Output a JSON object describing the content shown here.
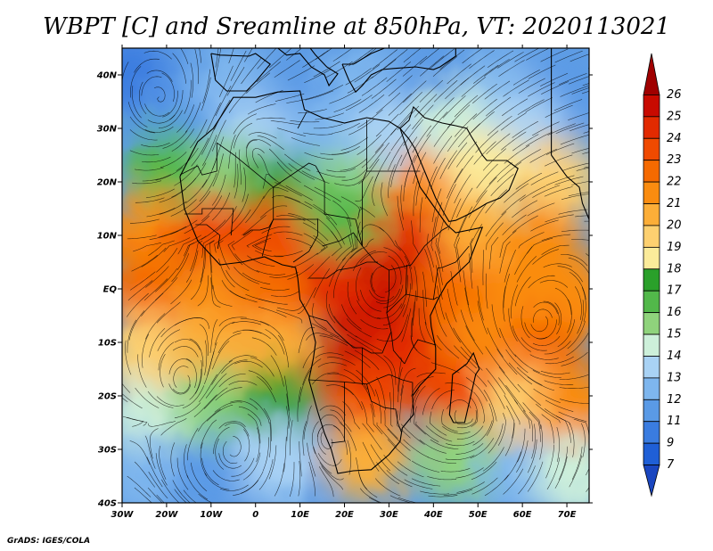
{
  "title": "WBPT [C] and Sreamline at 850hPa, VT: 2020113021",
  "credit": "GrADS: IGES/COLA",
  "map": {
    "lon_range": [
      -30,
      75
    ],
    "lat_range": [
      -40,
      45
    ],
    "x_ticks": [
      {
        "lon": -30,
        "label": "30W"
      },
      {
        "lon": -20,
        "label": "20W"
      },
      {
        "lon": -10,
        "label": "10W"
      },
      {
        "lon": 0,
        "label": "0"
      },
      {
        "lon": 10,
        "label": "10E"
      },
      {
        "lon": 20,
        "label": "20E"
      },
      {
        "lon": 30,
        "label": "30E"
      },
      {
        "lon": 40,
        "label": "40E"
      },
      {
        "lon": 50,
        "label": "50E"
      },
      {
        "lon": 60,
        "label": "60E"
      },
      {
        "lon": 70,
        "label": "70E"
      }
    ],
    "y_ticks": [
      {
        "lat": 40,
        "label": "40N"
      },
      {
        "lat": 30,
        "label": "30N"
      },
      {
        "lat": 20,
        "label": "20N"
      },
      {
        "lat": 10,
        "label": "10N"
      },
      {
        "lat": 0,
        "label": "EQ"
      },
      {
        "lat": -10,
        "label": "10S"
      },
      {
        "lat": -20,
        "label": "20S"
      },
      {
        "lat": -30,
        "label": "30S"
      },
      {
        "lat": -40,
        "label": "40S"
      }
    ]
  },
  "colorbar": {
    "labels": [
      "26",
      "25",
      "24",
      "23",
      "22",
      "21",
      "20",
      "19",
      "18",
      "17",
      "16",
      "15",
      "14",
      "13",
      "12",
      "11",
      "9",
      "7"
    ],
    "colors": [
      "#a00000",
      "#c80a00",
      "#e22a00",
      "#f04a00",
      "#f56a00",
      "#fa8c10",
      "#fcae38",
      "#fdd070",
      "#fbeb9a",
      "#2aa02a",
      "#52b84a",
      "#8fd37c",
      "#cdf0da",
      "#a9d2f4",
      "#7eb6ee",
      "#5a9ae6",
      "#3a7ce0",
      "#1f5fd6",
      "#1a46c0"
    ]
  },
  "field_blobs": [
    {
      "lon": -28,
      "lat": 40,
      "value": 10
    },
    {
      "lon": -15,
      "lat": 35,
      "value": 11
    },
    {
      "lon": -5,
      "lat": 38,
      "value": 12
    },
    {
      "lon": 10,
      "lat": 36,
      "value": 11
    },
    {
      "lon": 25,
      "lat": 38,
      "value": 12
    },
    {
      "lon": 40,
      "lat": 38,
      "value": 11
    },
    {
      "lon": 55,
      "lat": 38,
      "value": 12
    },
    {
      "lon": 68,
      "lat": 36,
      "value": 11
    },
    {
      "lon": 0,
      "lat": 28,
      "value": 13
    },
    {
      "lon": 15,
      "lat": 28,
      "value": 12
    },
    {
      "lon": 30,
      "lat": 28,
      "value": 13
    },
    {
      "lon": 45,
      "lat": 30,
      "value": 14
    },
    {
      "lon": 60,
      "lat": 30,
      "value": 13
    },
    {
      "lon": -20,
      "lat": 22,
      "value": 16
    },
    {
      "lon": -5,
      "lat": 20,
      "value": 15
    },
    {
      "lon": 5,
      "lat": 18,
      "value": 17
    },
    {
      "lon": 20,
      "lat": 18,
      "value": 15
    },
    {
      "lon": 38,
      "lat": 18,
      "value": 21
    },
    {
      "lon": 52,
      "lat": 22,
      "value": 18
    },
    {
      "lon": 68,
      "lat": 20,
      "value": 19
    },
    {
      "lon": -25,
      "lat": 10,
      "value": 21
    },
    {
      "lon": -10,
      "lat": 10,
      "value": 23
    },
    {
      "lon": 5,
      "lat": 9,
      "value": 23
    },
    {
      "lon": 20,
      "lat": 12,
      "value": 16
    },
    {
      "lon": 35,
      "lat": 8,
      "value": 24
    },
    {
      "lon": 50,
      "lat": 10,
      "value": 20
    },
    {
      "lon": 65,
      "lat": 8,
      "value": 21
    },
    {
      "lon": -25,
      "lat": 0,
      "value": 22
    },
    {
      "lon": -10,
      "lat": -2,
      "value": 21
    },
    {
      "lon": 5,
      "lat": -2,
      "value": 22
    },
    {
      "lon": 20,
      "lat": 0,
      "value": 24
    },
    {
      "lon": 32,
      "lat": -2,
      "value": 25
    },
    {
      "lon": 45,
      "lat": -2,
      "value": 22
    },
    {
      "lon": 60,
      "lat": 0,
      "value": 21
    },
    {
      "lon": 72,
      "lat": -2,
      "value": 21
    },
    {
      "lon": -25,
      "lat": -12,
      "value": 19
    },
    {
      "lon": -10,
      "lat": -12,
      "value": 20
    },
    {
      "lon": 5,
      "lat": -12,
      "value": 20
    },
    {
      "lon": 22,
      "lat": -14,
      "value": 25
    },
    {
      "lon": 35,
      "lat": -12,
      "value": 24
    },
    {
      "lon": 50,
      "lat": -12,
      "value": 21
    },
    {
      "lon": 65,
      "lat": -12,
      "value": 22
    },
    {
      "lon": -25,
      "lat": -25,
      "value": 14
    },
    {
      "lon": -10,
      "lat": -22,
      "value": 15
    },
    {
      "lon": 5,
      "lat": -22,
      "value": 17
    },
    {
      "lon": 25,
      "lat": -22,
      "value": 23
    },
    {
      "lon": 45,
      "lat": -20,
      "value": 23
    },
    {
      "lon": 60,
      "lat": -22,
      "value": 19
    },
    {
      "lon": 72,
      "lat": -22,
      "value": 21
    },
    {
      "lon": -25,
      "lat": -35,
      "value": 12
    },
    {
      "lon": -10,
      "lat": -35,
      "value": 11
    },
    {
      "lon": 5,
      "lat": -32,
      "value": 13
    },
    {
      "lon": 25,
      "lat": -32,
      "value": 20
    },
    {
      "lon": 45,
      "lat": -32,
      "value": 15
    },
    {
      "lon": 60,
      "lat": -35,
      "value": 12
    },
    {
      "lon": 72,
      "lat": -35,
      "value": 14
    }
  ],
  "coastlines": [
    [
      [
        -17,
        21
      ],
      [
        -16,
        15
      ],
      [
        -13,
        9
      ],
      [
        -8,
        4.5
      ],
      [
        -3,
        5
      ],
      [
        2,
        6
      ],
      [
        6,
        4.5
      ],
      [
        9,
        4
      ],
      [
        9.5,
        2
      ],
      [
        10,
        -2
      ],
      [
        12,
        -5
      ],
      [
        13.5,
        -10
      ],
      [
        13,
        -13
      ],
      [
        12,
        -17
      ],
      [
        14,
        -23
      ],
      [
        15.5,
        -27
      ],
      [
        17,
        -30
      ],
      [
        18.5,
        -34.5
      ],
      [
        22,
        -34
      ],
      [
        26,
        -33.8
      ],
      [
        30,
        -31
      ],
      [
        32.5,
        -28.5
      ],
      [
        33,
        -26
      ],
      [
        35.5,
        -23.5
      ],
      [
        35.3,
        -20
      ],
      [
        37,
        -18
      ],
      [
        40.5,
        -15
      ],
      [
        40.5,
        -11
      ],
      [
        39.5,
        -7
      ],
      [
        39.3,
        -5
      ],
      [
        41,
        -2
      ],
      [
        43,
        1
      ],
      [
        48,
        5
      ],
      [
        51,
        11.5
      ],
      [
        45,
        10.5
      ],
      [
        43,
        12
      ],
      [
        40,
        15.5
      ],
      [
        37,
        19
      ],
      [
        35,
        24
      ],
      [
        32.5,
        30
      ],
      [
        30,
        31.3
      ],
      [
        25,
        32
      ],
      [
        20,
        31
      ],
      [
        15,
        32
      ],
      [
        11,
        33.5
      ],
      [
        10,
        37
      ],
      [
        5,
        36.8
      ],
      [
        0,
        35.8
      ],
      [
        -5,
        35.8
      ],
      [
        -9.5,
        30
      ],
      [
        -13,
        27.5
      ],
      [
        -17,
        21
      ]
    ],
    [
      [
        44.5,
        -25
      ],
      [
        47,
        -25
      ],
      [
        49.5,
        -16
      ],
      [
        50.3,
        -15
      ],
      [
        49,
        -12
      ],
      [
        47.5,
        -14
      ],
      [
        44.3,
        -16
      ],
      [
        44,
        -20
      ],
      [
        43.6,
        -23.5
      ],
      [
        44.5,
        -25
      ]
    ],
    [
      [
        32.5,
        30
      ],
      [
        34.5,
        28
      ],
      [
        36,
        26
      ],
      [
        38,
        22
      ],
      [
        39,
        20
      ],
      [
        40.5,
        17
      ],
      [
        42.5,
        14
      ],
      [
        43.5,
        12.6
      ],
      [
        45,
        12.8
      ],
      [
        48,
        14
      ],
      [
        52,
        16
      ],
      [
        55,
        17
      ],
      [
        57,
        18.5
      ],
      [
        59,
        22.5
      ],
      [
        56.5,
        24
      ],
      [
        54,
        24
      ],
      [
        52,
        24
      ],
      [
        51,
        25
      ],
      [
        50,
        26.5
      ],
      [
        48.5,
        28.5
      ],
      [
        47.5,
        30
      ],
      [
        45,
        30.5
      ],
      [
        42,
        31
      ],
      [
        38,
        32
      ],
      [
        35.5,
        34
      ],
      [
        34.5,
        31.5
      ],
      [
        32.5,
        30
      ]
    ],
    [
      [
        66.5,
        25
      ],
      [
        70,
        21
      ],
      [
        72.8,
        19
      ],
      [
        73.5,
        16
      ],
      [
        75,
        13
      ],
      [
        75,
        45
      ],
      [
        66.5,
        45
      ],
      [
        66.5,
        25
      ]
    ],
    [
      [
        -10,
        44
      ],
      [
        -9,
        39
      ],
      [
        -6.5,
        37
      ],
      [
        -2,
        37
      ],
      [
        0.3,
        39
      ],
      [
        3.3,
        42
      ],
      [
        0,
        44
      ],
      [
        -1.5,
        43.5
      ],
      [
        -8,
        43.7
      ],
      [
        -10,
        44
      ]
    ],
    [
      [
        5,
        45
      ],
      [
        7,
        43.7
      ],
      [
        10,
        44
      ],
      [
        12.5,
        41.5
      ],
      [
        15.5,
        40
      ],
      [
        16.5,
        38
      ],
      [
        18.5,
        40.2
      ],
      [
        16,
        41.5
      ],
      [
        13.5,
        43.7
      ],
      [
        12.3,
        45
      ],
      [
        5,
        45
      ]
    ],
    [
      [
        19.5,
        42
      ],
      [
        21,
        39
      ],
      [
        22.5,
        36.8
      ],
      [
        24,
        38
      ],
      [
        26,
        40
      ],
      [
        28.5,
        41
      ],
      [
        31,
        41.2
      ],
      [
        36,
        41.5
      ],
      [
        40,
        41
      ],
      [
        41.5,
        41.5
      ],
      [
        45,
        43.5
      ],
      [
        45,
        45
      ],
      [
        29,
        45
      ],
      [
        26,
        44
      ],
      [
        22,
        42
      ],
      [
        19.5,
        42
      ]
    ]
  ],
  "borders": [
    [
      [
        -8.7,
        27.3
      ],
      [
        -8.7,
        22
      ],
      [
        -12,
        21.3
      ],
      [
        -13,
        23
      ],
      [
        -17,
        21.3
      ]
    ],
    [
      [
        -8.7,
        27.3
      ],
      [
        -4.8,
        25
      ],
      [
        4,
        19
      ],
      [
        12,
        23.5
      ],
      [
        13.5,
        23
      ]
    ],
    [
      [
        9.5,
        30
      ],
      [
        11.5,
        33.1
      ]
    ],
    [
      [
        25,
        31.6
      ],
      [
        25,
        22
      ],
      [
        37,
        22
      ]
    ],
    [
      [
        25,
        22
      ],
      [
        24,
        20
      ],
      [
        24,
        8
      ],
      [
        27,
        5
      ],
      [
        30,
        3.5
      ],
      [
        35,
        4.5
      ],
      [
        38,
        8
      ],
      [
        42,
        11
      ],
      [
        43.3,
        11.6
      ]
    ],
    [
      [
        13.5,
        23
      ],
      [
        15.5,
        20
      ],
      [
        15.5,
        14
      ],
      [
        22.5,
        13
      ],
      [
        24,
        8
      ]
    ],
    [
      [
        4,
        19
      ],
      [
        4,
        13
      ],
      [
        3,
        11
      ],
      [
        1.5,
        6.1
      ]
    ],
    [
      [
        -5.5,
        10
      ],
      [
        -5,
        15
      ],
      [
        -12,
        15
      ],
      [
        -12,
        14
      ],
      [
        -16,
        14
      ]
    ],
    [
      [
        -8.5,
        7.5
      ],
      [
        -8,
        10
      ],
      [
        -11,
        12
      ],
      [
        -13.5,
        12
      ]
    ],
    [
      [
        -2.7,
        10
      ],
      [
        -1,
        11
      ],
      [
        1,
        11
      ],
      [
        3,
        11.5
      ],
      [
        4,
        13
      ],
      [
        14,
        13
      ]
    ],
    [
      [
        8.5,
        5
      ],
      [
        12,
        7
      ],
      [
        14,
        10
      ],
      [
        14,
        13
      ]
    ],
    [
      [
        15,
        8
      ],
      [
        19,
        9
      ],
      [
        22,
        10.5
      ],
      [
        24,
        8
      ]
    ],
    [
      [
        12,
        2
      ],
      [
        16,
        2
      ],
      [
        18.5,
        3.5
      ],
      [
        22,
        4
      ],
      [
        25,
        5
      ],
      [
        27.5,
        5
      ]
    ],
    [
      [
        30,
        3.5
      ],
      [
        30,
        -1
      ],
      [
        29.5,
        -4.5
      ],
      [
        30.5,
        -8
      ],
      [
        31,
        -11.5
      ],
      [
        33.5,
        -14
      ]
    ],
    [
      [
        29.5,
        -4.5
      ],
      [
        33.8,
        -1
      ],
      [
        40,
        -2
      ],
      [
        41,
        -1.5
      ]
    ],
    [
      [
        33.8,
        -1
      ],
      [
        34,
        4.5
      ]
    ],
    [
      [
        12,
        -5
      ],
      [
        16,
        -6
      ],
      [
        18,
        -8
      ],
      [
        22,
        -11
      ],
      [
        24,
        -11
      ],
      [
        26,
        -12
      ],
      [
        28.5,
        -12
      ],
      [
        30.5,
        -8
      ]
    ],
    [
      [
        12,
        -17
      ],
      [
        20,
        -17.4
      ],
      [
        25,
        -17.8
      ],
      [
        27,
        -17
      ],
      [
        30,
        -16
      ],
      [
        33,
        -17
      ],
      [
        35.3,
        -17.5
      ],
      [
        35.3,
        -20
      ]
    ],
    [
      [
        20,
        -17.4
      ],
      [
        20,
        -22
      ],
      [
        20,
        -25
      ],
      [
        20,
        -28.5
      ],
      [
        17,
        -28.8
      ]
    ],
    [
      [
        25,
        -17.8
      ],
      [
        26,
        -21
      ],
      [
        29,
        -22.2
      ],
      [
        31.5,
        -22.5
      ],
      [
        32,
        -25
      ],
      [
        32.8,
        -26.8
      ]
    ],
    [
      [
        24,
        -11
      ],
      [
        24,
        -18
      ]
    ],
    [
      [
        33.5,
        -14
      ],
      [
        35,
        -11.5
      ],
      [
        36.5,
        -9.5
      ],
      [
        40.5,
        -10.5
      ]
    ],
    [
      [
        40,
        -2
      ],
      [
        41,
        3.9
      ],
      [
        42,
        4
      ],
      [
        45,
        5
      ],
      [
        48,
        8
      ]
    ]
  ]
}
